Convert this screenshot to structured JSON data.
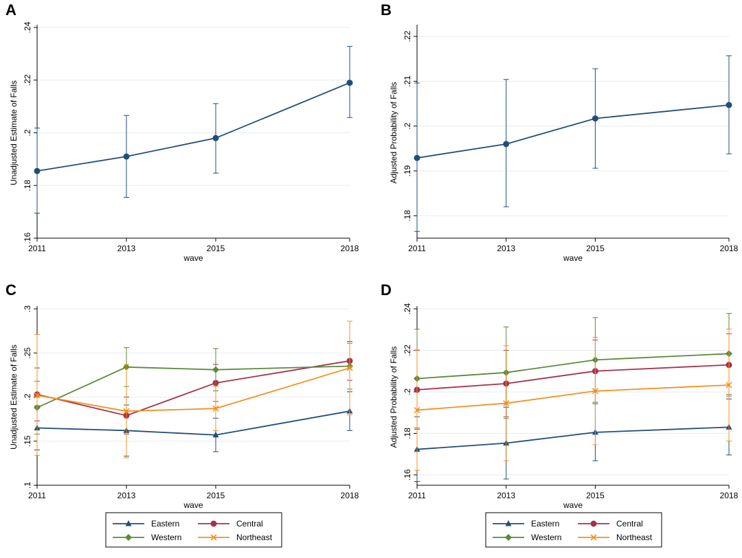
{
  "panels": [
    "A",
    "B",
    "C",
    "D"
  ],
  "chart_data": [
    {
      "panel": "A",
      "type": "line",
      "xlabel": "wave",
      "ylabel": "Unadjusted Estimate of Falls",
      "x": [
        2011,
        2013,
        2015,
        2018
      ],
      "xticks": [
        "2011",
        "2013",
        "2015",
        "2018"
      ],
      "ylim": [
        0.16,
        0.24
      ],
      "yticks": [
        0.16,
        0.18,
        0.2,
        0.22,
        0.24
      ],
      "ytick_labels": [
        ".16",
        ".18",
        ".2",
        ".22",
        ".24"
      ],
      "grid": true,
      "series": [
        {
          "color": "#1f4e79",
          "marker": "circle",
          "values": [
            0.1855,
            0.191,
            0.198,
            0.219
          ],
          "lower": [
            0.1695,
            0.1755,
            0.1847,
            0.2058
          ],
          "upper": [
            0.2018,
            0.2066,
            0.2111,
            0.2328
          ]
        }
      ]
    },
    {
      "panel": "B",
      "type": "line",
      "xlabel": "wave",
      "ylabel": "Adjusted Probability of Falls",
      "x": [
        2011,
        2013,
        2015,
        2018
      ],
      "xticks": [
        "2011",
        "2013",
        "2015",
        "2018"
      ],
      "ylim": [
        0.175,
        0.222
      ],
      "yticks": [
        0.18,
        0.19,
        0.2,
        0.21,
        0.22
      ],
      "ytick_labels": [
        ".18",
        ".19",
        ".2",
        ".21",
        ".22"
      ],
      "grid": true,
      "series": [
        {
          "color": "#1f4e79",
          "marker": "circle",
          "values": [
            0.1929,
            0.196,
            0.2017,
            0.2047
          ],
          "lower": [
            0.1765,
            0.182,
            0.1906,
            0.1938
          ],
          "upper": [
            0.2096,
            0.2104,
            0.2128,
            0.2157
          ]
        }
      ]
    },
    {
      "panel": "C",
      "type": "line",
      "xlabel": "wave",
      "ylabel": "Unadjusted Estimate of Falls",
      "x": [
        2011,
        2013,
        2015,
        2018
      ],
      "xticks": [
        "2011",
        "2013",
        "2015",
        "2018"
      ],
      "ylim": [
        0.1,
        0.3
      ],
      "yticks": [
        0.1,
        0.15,
        0.2,
        0.25,
        0.3
      ],
      "ytick_labels": [
        ".1",
        ".15",
        ".2",
        ".25",
        ".3"
      ],
      "grid": true,
      "legend": "bottom",
      "series": [
        {
          "name": "Eastern",
          "color": "#1f4e79",
          "marker": "triangle",
          "values": [
            0.165,
            0.162,
            0.157,
            0.184
          ],
          "lower": [
            0.14,
            0.133,
            0.138,
            0.162
          ],
          "upper": [
            0.19,
            0.191,
            0.176,
            0.206
          ]
        },
        {
          "name": "Central",
          "color": "#a6314a",
          "marker": "circle",
          "values": [
            0.203,
            0.179,
            0.216,
            0.241
          ],
          "lower": [
            0.173,
            0.158,
            0.195,
            0.219
          ],
          "upper": [
            0.233,
            0.2,
            0.237,
            0.263
          ]
        },
        {
          "name": "Western",
          "color": "#5a8a3a",
          "marker": "diamond",
          "values": [
            0.188,
            0.234,
            0.231,
            0.235
          ],
          "lower": [
            0.158,
            0.212,
            0.207,
            0.209
          ],
          "upper": [
            0.218,
            0.256,
            0.255,
            0.261
          ]
        },
        {
          "name": "Northeast",
          "color": "#f4901f",
          "marker": "x",
          "values": [
            0.202,
            0.184,
            0.187,
            0.233
          ],
          "lower": [
            0.134,
            0.131,
            0.162,
            0.18
          ],
          "upper": [
            0.271,
            0.237,
            0.212,
            0.286
          ]
        }
      ]
    },
    {
      "panel": "D",
      "type": "line",
      "xlabel": "wave",
      "ylabel": "Adjusted Probability of Falls",
      "x": [
        2011,
        2013,
        2015,
        2018
      ],
      "xticks": [
        "2011",
        "2013",
        "2015",
        "2018"
      ],
      "ylim": [
        0.155,
        0.24
      ],
      "yticks": [
        0.16,
        0.18,
        0.2,
        0.22,
        0.24
      ],
      "ytick_labels": [
        ".16",
        ".18",
        ".2",
        ".22",
        ".24"
      ],
      "grid": true,
      "legend": "bottom",
      "series": [
        {
          "name": "Eastern",
          "color": "#1f4e79",
          "marker": "triangle",
          "values": [
            0.1723,
            0.1753,
            0.1805,
            0.183
          ],
          "lower": [
            0.1568,
            0.158,
            0.1668,
            0.1696
          ],
          "upper": [
            0.188,
            0.1926,
            0.1943,
            0.1966
          ]
        },
        {
          "name": "Central",
          "color": "#a6314a",
          "marker": "circle",
          "values": [
            0.201,
            0.204,
            0.21,
            0.213
          ],
          "lower": [
            0.182,
            0.188,
            0.195,
            0.198
          ],
          "upper": [
            0.22,
            0.22,
            0.225,
            0.228
          ]
        },
        {
          "name": "Western",
          "color": "#5a8a3a",
          "marker": "diamond",
          "values": [
            0.2064,
            0.2093,
            0.2154,
            0.2184
          ],
          "lower": [
            0.1826,
            0.1872,
            0.195,
            0.1988
          ],
          "upper": [
            0.2302,
            0.2313,
            0.2358,
            0.2378
          ]
        },
        {
          "name": "Northeast",
          "color": "#f4901f",
          "marker": "x",
          "values": [
            0.1912,
            0.1945,
            0.2004,
            0.2033
          ],
          "lower": [
            0.1622,
            0.1668,
            0.1745,
            0.1763
          ],
          "upper": [
            0.2202,
            0.2222,
            0.2263,
            0.2303
          ]
        }
      ]
    }
  ]
}
